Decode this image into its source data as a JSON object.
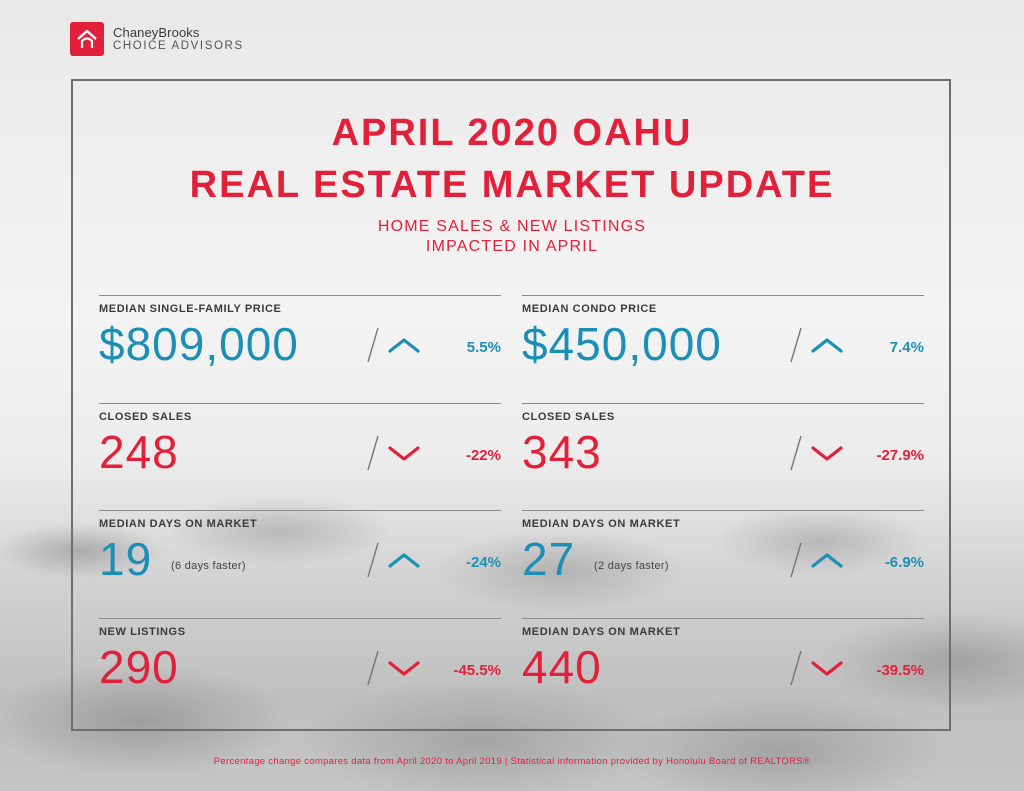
{
  "brand": {
    "name": "ChaneyBrooks",
    "tagline": "CHOICE ADVISORS",
    "accent": "#e2203a",
    "up_color": "#1b8fb5"
  },
  "header": {
    "title_line1": "APRIL 2020 OAHU",
    "title_line2": "REAL ESTATE MARKET UPDATE",
    "subtitle_line1": "HOME SALES & NEW LISTINGS",
    "subtitle_line2": "IMPACTED IN APRIL"
  },
  "stats": [
    {
      "label": "MEDIAN SINGLE-FAMILY PRICE",
      "value": "$809,000",
      "note": "",
      "direction": "up",
      "change": "5.5%",
      "value_color": "blue"
    },
    {
      "label": "MEDIAN CONDO PRICE",
      "value": "$450,000",
      "note": "",
      "direction": "up",
      "change": "7.4%",
      "value_color": "blue"
    },
    {
      "label": "CLOSED SALES",
      "value": "248",
      "note": "",
      "direction": "down",
      "change": "-22%",
      "value_color": "red"
    },
    {
      "label": "CLOSED SALES",
      "value": "343",
      "note": "",
      "direction": "down",
      "change": "-27.9%",
      "value_color": "red"
    },
    {
      "label": "MEDIAN DAYS ON MARKET",
      "value": "19",
      "note": "(6 days faster)",
      "direction": "up",
      "change": "-24%",
      "value_color": "blue"
    },
    {
      "label": "MEDIAN DAYS ON MARKET",
      "value": "27",
      "note": "(2 days faster)",
      "direction": "up",
      "change": "-6.9%",
      "value_color": "blue"
    },
    {
      "label": "NEW LISTINGS",
      "value": "290",
      "note": "",
      "direction": "down",
      "change": "-45.5%",
      "value_color": "red"
    },
    {
      "label": "MEDIAN DAYS ON MARKET",
      "value": "440",
      "note": "",
      "direction": "down",
      "change": "-39.5%",
      "value_color": "red"
    }
  ],
  "footer": {
    "text": "Percentage change compares data from April 2020 to April 2019  |  Statistical information provided by Honolulu Board of REALTORS®"
  }
}
